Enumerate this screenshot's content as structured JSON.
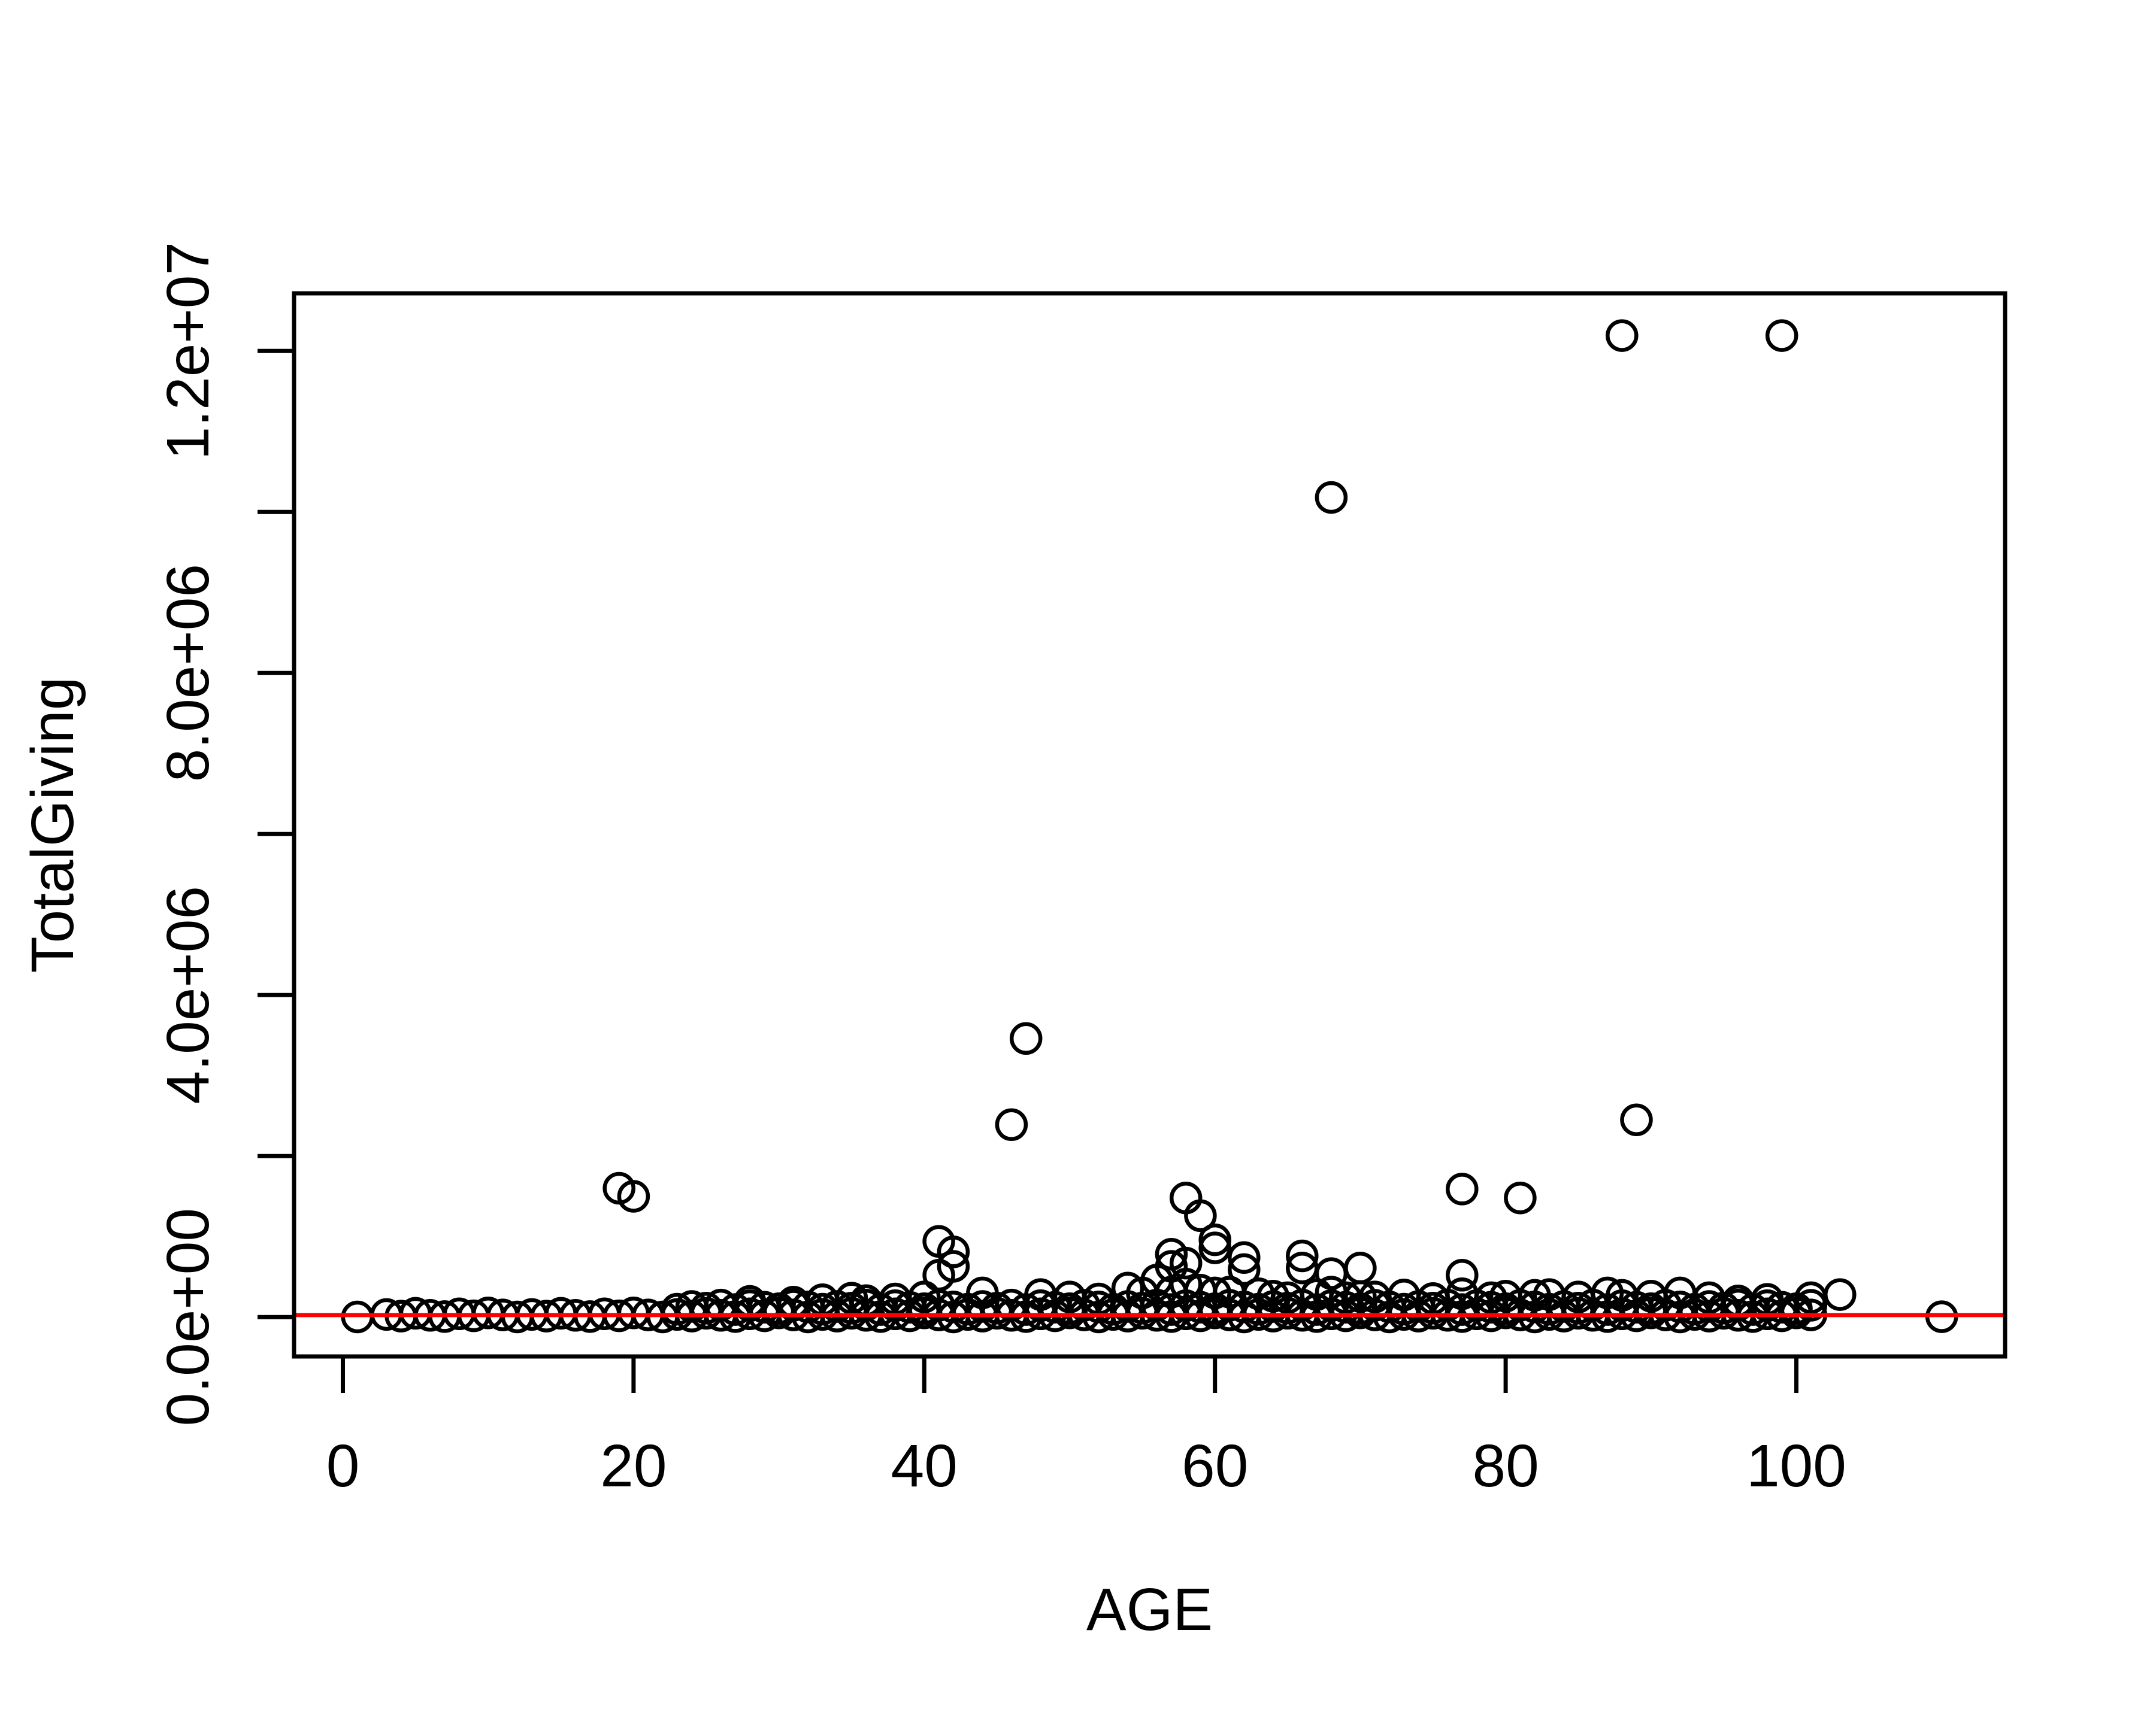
{
  "page": {
    "background": "#ffffff",
    "description": "R base-graphics scatter plot of TotalGiving versus AGE with a red horizontal reference line near zero"
  },
  "chart_data": {
    "type": "scatter",
    "title": "",
    "xlabel": "AGE",
    "ylabel": "TotalGiving",
    "xlim": [
      -3.36,
      114.36
    ],
    "ylim": [
      -489000,
      12715000
    ],
    "grid": false,
    "legend": false,
    "axis_color": "#000000",
    "background": "#ffffff",
    "marker": {
      "shape": "open-circle",
      "color": "#000000"
    },
    "x_ticks": [
      {
        "v": 0,
        "label": "0"
      },
      {
        "v": 20,
        "label": "20"
      },
      {
        "v": 40,
        "label": "40"
      },
      {
        "v": 60,
        "label": "60"
      },
      {
        "v": 80,
        "label": "80"
      },
      {
        "v": 100,
        "label": "100"
      }
    ],
    "y_ticks": [
      {
        "v": 0,
        "label": "0.0e+00"
      },
      {
        "v": 2000000,
        "label": ""
      },
      {
        "v": 4000000,
        "label": "4.0e+06"
      },
      {
        "v": 6000000,
        "label": ""
      },
      {
        "v": 8000000,
        "label": "8.0e+06"
      },
      {
        "v": 10000000,
        "label": ""
      },
      {
        "v": 12000000,
        "label": "1.2e+07"
      }
    ],
    "reference_line": {
      "y": 25000,
      "color": "#ff0000"
    },
    "points_note": "values estimated from pixel positions; dense band of donors near TotalGiving=0 across ages 1-101 plus outliers",
    "points": [
      [
        1,
        2000
      ],
      [
        3,
        32000
      ],
      [
        4,
        12000
      ],
      [
        5,
        47000
      ],
      [
        6,
        22000
      ],
      [
        7,
        6000
      ],
      [
        8,
        40000
      ],
      [
        9,
        16000
      ],
      [
        10,
        52000
      ],
      [
        11,
        27000
      ],
      [
        12,
        2000
      ],
      [
        13,
        32000
      ],
      [
        14,
        12000
      ],
      [
        15,
        47000
      ],
      [
        16,
        22000
      ],
      [
        17,
        6000
      ],
      [
        18,
        40000
      ],
      [
        19,
        16000
      ],
      [
        20,
        52000
      ],
      [
        21,
        27000
      ],
      [
        22,
        2000
      ],
      [
        23,
        32000
      ],
      [
        24,
        12000
      ],
      [
        25,
        47000
      ],
      [
        26,
        22000
      ],
      [
        27,
        6000
      ],
      [
        28,
        40000
      ],
      [
        29,
        16000
      ],
      [
        30,
        52000
      ],
      [
        31,
        27000
      ],
      [
        32,
        2000
      ],
      [
        33,
        32000
      ],
      [
        34,
        12000
      ],
      [
        35,
        47000
      ],
      [
        36,
        22000
      ],
      [
        37,
        6000
      ],
      [
        38,
        40000
      ],
      [
        39,
        16000
      ],
      [
        40,
        52000
      ],
      [
        41,
        27000
      ],
      [
        42,
        2000
      ],
      [
        43,
        32000
      ],
      [
        44,
        12000
      ],
      [
        45,
        47000
      ],
      [
        46,
        22000
      ],
      [
        47,
        6000
      ],
      [
        48,
        40000
      ],
      [
        49,
        16000
      ],
      [
        50,
        52000
      ],
      [
        51,
        27000
      ],
      [
        52,
        2000
      ],
      [
        53,
        32000
      ],
      [
        54,
        12000
      ],
      [
        55,
        47000
      ],
      [
        56,
        22000
      ],
      [
        57,
        6000
      ],
      [
        58,
        40000
      ],
      [
        59,
        16000
      ],
      [
        60,
        52000
      ],
      [
        61,
        27000
      ],
      [
        62,
        2000
      ],
      [
        63,
        32000
      ],
      [
        64,
        12000
      ],
      [
        65,
        47000
      ],
      [
        66,
        22000
      ],
      [
        67,
        6000
      ],
      [
        68,
        40000
      ],
      [
        69,
        16000
      ],
      [
        70,
        52000
      ],
      [
        71,
        27000
      ],
      [
        72,
        2000
      ],
      [
        73,
        32000
      ],
      [
        74,
        12000
      ],
      [
        75,
        47000
      ],
      [
        76,
        22000
      ],
      [
        77,
        6000
      ],
      [
        78,
        40000
      ],
      [
        79,
        16000
      ],
      [
        80,
        52000
      ],
      [
        81,
        27000
      ],
      [
        82,
        2000
      ],
      [
        83,
        32000
      ],
      [
        84,
        12000
      ],
      [
        85,
        47000
      ],
      [
        86,
        22000
      ],
      [
        87,
        6000
      ],
      [
        88,
        40000
      ],
      [
        89,
        16000
      ],
      [
        90,
        52000
      ],
      [
        91,
        27000
      ],
      [
        92,
        2000
      ],
      [
        93,
        32000
      ],
      [
        94,
        12000
      ],
      [
        95,
        47000
      ],
      [
        96,
        22000
      ],
      [
        97,
        6000
      ],
      [
        98,
        40000
      ],
      [
        99,
        16000
      ],
      [
        100,
        52000
      ],
      [
        101,
        27000
      ],
      [
        110,
        5000
      ],
      [
        23,
        98000
      ],
      [
        24,
        132000
      ],
      [
        25,
        112000
      ],
      [
        26,
        150000
      ],
      [
        27,
        94000
      ],
      [
        28,
        142000
      ],
      [
        29,
        122000
      ],
      [
        30,
        104000
      ],
      [
        31,
        147000
      ],
      [
        32,
        126000
      ],
      [
        33,
        98000
      ],
      [
        34,
        132000
      ],
      [
        35,
        112000
      ],
      [
        36,
        150000
      ],
      [
        37,
        94000
      ],
      [
        38,
        142000
      ],
      [
        39,
        122000
      ],
      [
        40,
        104000
      ],
      [
        41,
        147000
      ],
      [
        42,
        126000
      ],
      [
        43,
        98000
      ],
      [
        44,
        132000
      ],
      [
        45,
        112000
      ],
      [
        46,
        150000
      ],
      [
        47,
        94000
      ],
      [
        48,
        142000
      ],
      [
        49,
        122000
      ],
      [
        50,
        104000
      ],
      [
        51,
        147000
      ],
      [
        52,
        126000
      ],
      [
        53,
        98000
      ],
      [
        54,
        132000
      ],
      [
        55,
        112000
      ],
      [
        56,
        150000
      ],
      [
        57,
        94000
      ],
      [
        58,
        142000
      ],
      [
        59,
        122000
      ],
      [
        60,
        104000
      ],
      [
        61,
        147000
      ],
      [
        62,
        126000
      ],
      [
        63,
        98000
      ],
      [
        64,
        132000
      ],
      [
        65,
        112000
      ],
      [
        66,
        150000
      ],
      [
        67,
        94000
      ],
      [
        68,
        142000
      ],
      [
        69,
        122000
      ],
      [
        70,
        104000
      ],
      [
        71,
        147000
      ],
      [
        72,
        126000
      ],
      [
        73,
        98000
      ],
      [
        74,
        132000
      ],
      [
        75,
        112000
      ],
      [
        76,
        150000
      ],
      [
        77,
        94000
      ],
      [
        78,
        142000
      ],
      [
        79,
        122000
      ],
      [
        80,
        104000
      ],
      [
        81,
        147000
      ],
      [
        82,
        126000
      ],
      [
        83,
        98000
      ],
      [
        84,
        132000
      ],
      [
        85,
        112000
      ],
      [
        86,
        150000
      ],
      [
        87,
        94000
      ],
      [
        88,
        142000
      ],
      [
        89,
        122000
      ],
      [
        90,
        104000
      ],
      [
        91,
        147000
      ],
      [
        92,
        126000
      ],
      [
        93,
        98000
      ],
      [
        94,
        132000
      ],
      [
        95,
        112000
      ],
      [
        96,
        150000
      ],
      [
        97,
        94000
      ],
      [
        98,
        142000
      ],
      [
        99,
        122000
      ],
      [
        100,
        104000
      ],
      [
        101,
        147000
      ],
      [
        28,
        195000
      ],
      [
        31,
        185000
      ],
      [
        33,
        215000
      ],
      [
        35,
        235000
      ],
      [
        36,
        205000
      ],
      [
        38,
        225000
      ],
      [
        40,
        250000
      ],
      [
        44,
        300000
      ],
      [
        48,
        280000
      ],
      [
        50,
        250000
      ],
      [
        52,
        225000
      ],
      [
        54,
        360000
      ],
      [
        55,
        300000
      ],
      [
        56,
        460000
      ],
      [
        57,
        780000
      ],
      [
        57,
        630000
      ],
      [
        57,
        310000
      ],
      [
        58,
        670000
      ],
      [
        58,
        410000
      ],
      [
        59,
        335000
      ],
      [
        60,
        960000
      ],
      [
        60,
        860000
      ],
      [
        60,
        300000
      ],
      [
        61,
        310000
      ],
      [
        62,
        740000
      ],
      [
        62,
        590000
      ],
      [
        63,
        290000
      ],
      [
        64,
        260000
      ],
      [
        65,
        240000
      ],
      [
        66,
        760000
      ],
      [
        66,
        610000
      ],
      [
        67,
        280000
      ],
      [
        68,
        540000
      ],
      [
        68,
        310000
      ],
      [
        69,
        240000
      ],
      [
        70,
        610000
      ],
      [
        70,
        255000
      ],
      [
        71,
        250000
      ],
      [
        73,
        275000
      ],
      [
        75,
        230000
      ],
      [
        77,
        520000
      ],
      [
        77,
        290000
      ],
      [
        79,
        240000
      ],
      [
        80,
        260000
      ],
      [
        82,
        270000
      ],
      [
        83,
        280000
      ],
      [
        85,
        250000
      ],
      [
        87,
        300000
      ],
      [
        88,
        270000
      ],
      [
        90,
        260000
      ],
      [
        92,
        300000
      ],
      [
        94,
        240000
      ],
      [
        96,
        200000
      ],
      [
        98,
        220000
      ],
      [
        101,
        240000
      ],
      [
        103,
        280000
      ],
      [
        41,
        940000
      ],
      [
        42,
        810000
      ],
      [
        42,
        630000
      ],
      [
        41,
        520000
      ],
      [
        19,
        1600000
      ],
      [
        20,
        1500000
      ],
      [
        58,
        1480000
      ],
      [
        59,
        1260000
      ],
      [
        77,
        1590000
      ],
      [
        81,
        1480000
      ],
      [
        46,
        2390000
      ],
      [
        47,
        3460000
      ],
      [
        89,
        2450000
      ],
      [
        68,
        10180000
      ],
      [
        88,
        12190000
      ],
      [
        99,
        12190000
      ]
    ]
  }
}
